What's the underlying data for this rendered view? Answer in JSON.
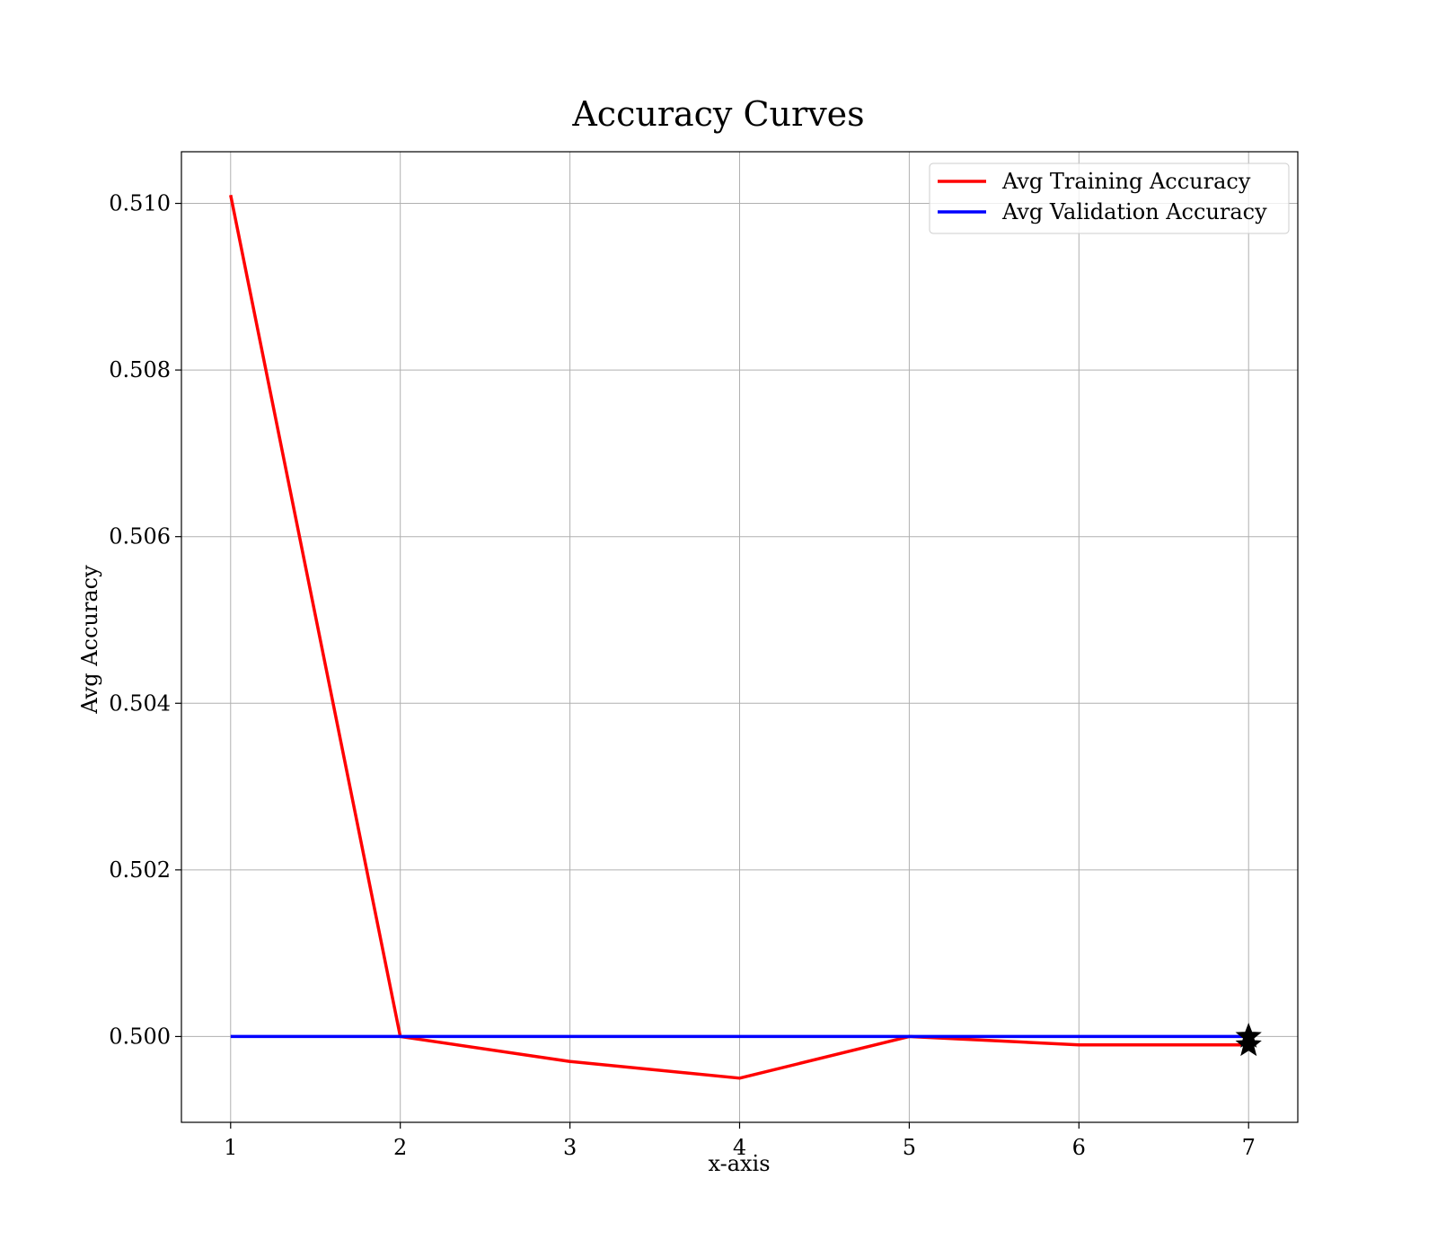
{
  "chart_data": {
    "type": "line",
    "title": "Accuracy Curves",
    "xlabel": "x-axis",
    "ylabel": "Avg Accuracy",
    "x": [
      1,
      2,
      3,
      4,
      5,
      6,
      7
    ],
    "xlim": [
      0.71,
      7.29
    ],
    "ylim": [
      0.49897,
      0.51062
    ],
    "xticks": [
      1,
      2,
      3,
      4,
      5,
      6,
      7
    ],
    "xtick_labels": [
      "1",
      "2",
      "3",
      "4",
      "5",
      "6",
      "7"
    ],
    "yticks": [
      0.5,
      0.502,
      0.504,
      0.506,
      0.508,
      0.51
    ],
    "ytick_labels": [
      "0.500",
      "0.502",
      "0.504",
      "0.506",
      "0.508",
      "0.510"
    ],
    "grid": true,
    "legend_position": "top-right",
    "series": [
      {
        "name": "Avg Training Accuracy",
        "color": "#ff0000",
        "values": [
          0.5101,
          0.5,
          0.4997,
          0.4995,
          0.5,
          0.4999,
          0.4999
        ],
        "final_marker": "star"
      },
      {
        "name": "Avg Validation Accuracy",
        "color": "#0000ff",
        "values": [
          0.5,
          0.5,
          0.5,
          0.5,
          0.5,
          0.5,
          0.5
        ],
        "final_marker": "star"
      }
    ],
    "marker_color": "#000000"
  }
}
